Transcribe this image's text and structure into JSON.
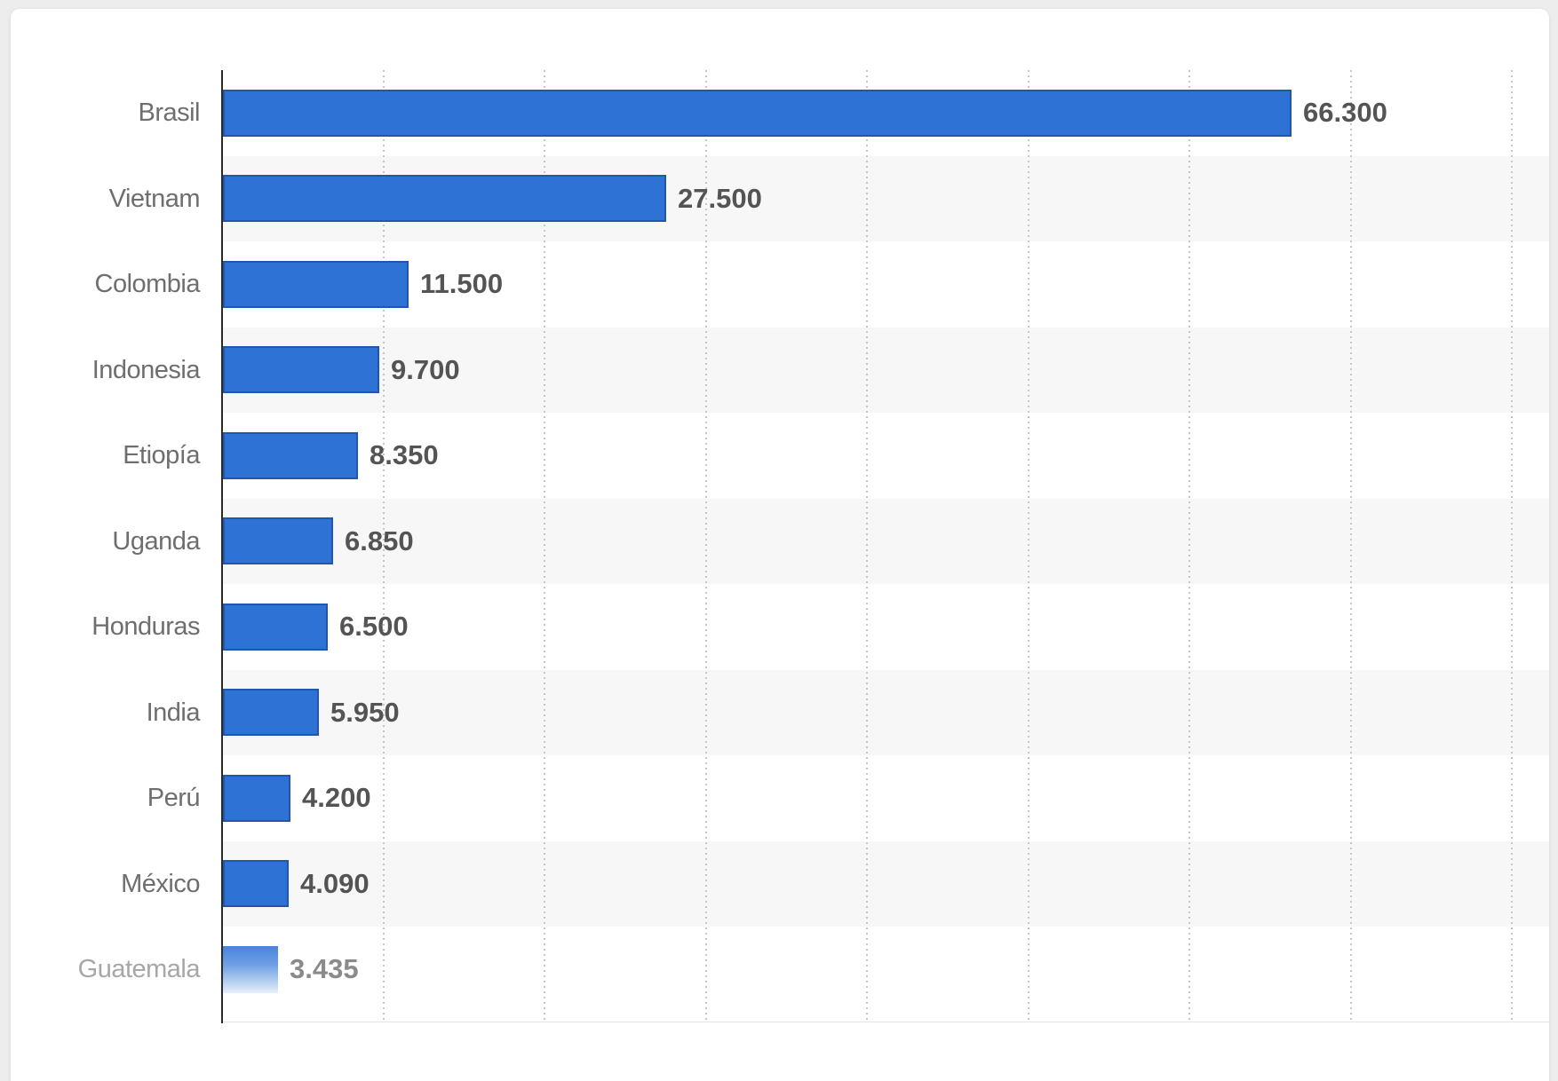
{
  "page": {
    "background_color": "#ededee",
    "card_background_color": "#ffffff"
  },
  "chart_data": {
    "type": "bar",
    "orientation": "horizontal",
    "title": "",
    "categories": [
      "Brasil",
      "Vietnam",
      "Colombia",
      "Indonesia",
      "Etiopía",
      "Uganda",
      "Honduras",
      "India",
      "Perú",
      "México",
      "Guatemala"
    ],
    "values": [
      66300,
      27500,
      11500,
      9700,
      8350,
      6850,
      6500,
      5950,
      4200,
      4090,
      3435
    ],
    "value_labels": [
      "66.300",
      "27.500",
      "11.500",
      "9.700",
      "8.350",
      "6.850",
      "6.500",
      "5.950",
      "4.200",
      "4.090",
      "3.435"
    ],
    "xlabel": "",
    "ylabel": "",
    "xlim": [
      0,
      82200
    ],
    "gridline_interval": 10000,
    "gridline_style": "dotted-vertical",
    "legend": "none",
    "row_stripe_rows": "odd",
    "highlighted_category": "Guatemala",
    "highlight_style": "bar-fades-to-white-bottom, gray label",
    "colors": {
      "bar_fill": "#2e72d5",
      "bar_border": "#2057ac",
      "row_stripe": "#f7f7f7",
      "gridline": "#c7c7c7",
      "axis_line": "#2a2a2a",
      "category_label": "#6e6e6e",
      "category_label_faded": "#a7a7a7",
      "value_label": "#545456",
      "value_label_faded": "#8a8a8a"
    }
  }
}
